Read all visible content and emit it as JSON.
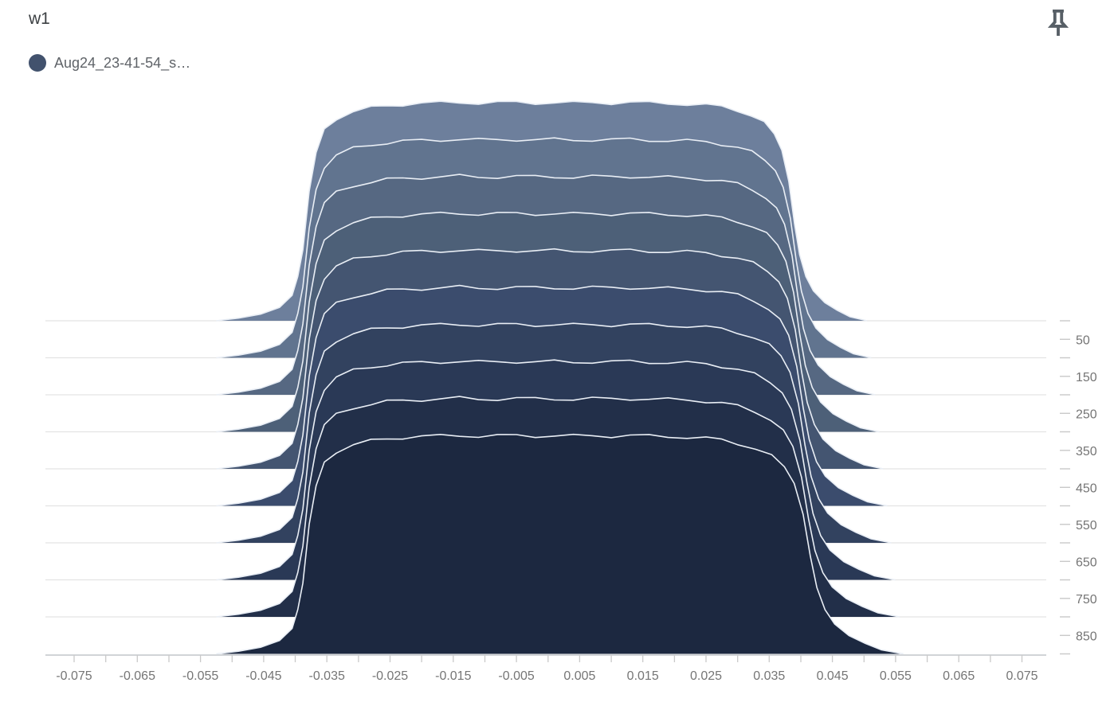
{
  "header": {
    "title": "w1",
    "pin_icon": "push-pin-icon"
  },
  "legend": {
    "items": [
      {
        "label": "Aug24_23-41-54_s…",
        "color": "#42526d"
      }
    ]
  },
  "chart_data": {
    "type": "ridgeline_histogram",
    "title": "w1",
    "run": "Aug24_23-41-54_s…",
    "legend_position": "top-left",
    "grid": true,
    "x_axis": {
      "range": [
        -0.08,
        0.08
      ],
      "minor_tick_step": 0.005,
      "tick_values": [
        -0.075,
        -0.065,
        -0.055,
        -0.045,
        -0.035,
        -0.025,
        -0.015,
        -0.005,
        0.005,
        0.015,
        0.025,
        0.035,
        0.045,
        0.055,
        0.065,
        0.075
      ],
      "tick_labels": [
        "-0.075",
        "-0.065",
        "-0.055",
        "-0.045",
        "-0.035",
        "-0.025",
        "-0.015",
        "-0.005",
        "0.005",
        "0.015",
        "0.025",
        "0.035",
        "0.045",
        "0.055",
        "0.065",
        "0.075"
      ]
    },
    "step_axis": {
      "range": [
        0,
        900
      ],
      "tick_values": [
        50,
        150,
        250,
        350,
        450,
        550,
        650,
        750,
        850
      ],
      "tick_labels": [
        "50",
        "150",
        "250",
        "350",
        "450",
        "550",
        "650",
        "750",
        "850"
      ],
      "minor_tick_step": 50
    },
    "steps": [
      0,
      100,
      200,
      300,
      400,
      500,
      600,
      700,
      800,
      900
    ],
    "profile": [
      [
        -0.0525,
        0
      ],
      [
        -0.049,
        0.012
      ],
      [
        -0.0455,
        0.03
      ],
      [
        -0.0425,
        0.06
      ],
      [
        -0.0405,
        0.115
      ],
      [
        -0.0396,
        0.2
      ],
      [
        -0.0388,
        0.32
      ],
      [
        -0.0378,
        0.585
      ],
      [
        -0.0367,
        0.76
      ],
      [
        -0.0354,
        0.864
      ],
      [
        -0.0335,
        0.915
      ],
      [
        -0.0308,
        0.946
      ],
      [
        -0.028,
        0.962
      ],
      [
        -0.0255,
        0.972
      ],
      [
        -0.023,
        0.978
      ],
      [
        -0.02,
        0.982
      ],
      [
        -0.017,
        0.985
      ],
      [
        -0.014,
        0.988
      ],
      [
        -0.011,
        0.984
      ],
      [
        -0.008,
        0.985
      ],
      [
        -0.005,
        0.987
      ],
      [
        -0.002,
        0.985
      ],
      [
        0.001,
        0.986
      ],
      [
        0.004,
        0.984
      ],
      [
        0.007,
        0.986
      ],
      [
        0.01,
        0.985
      ],
      [
        0.013,
        0.987
      ],
      [
        0.016,
        0.984
      ],
      [
        0.019,
        0.982
      ],
      [
        0.022,
        0.98
      ],
      [
        0.025,
        0.975
      ],
      [
        0.0275,
        0.966
      ],
      [
        0.03,
        0.952
      ],
      [
        0.0322,
        0.928
      ],
      [
        0.0342,
        0.893
      ],
      [
        0.0358,
        0.845
      ],
      [
        0.037,
        0.77
      ],
      [
        0.0381,
        0.63
      ],
      [
        0.039,
        0.44
      ],
      [
        0.0398,
        0.3
      ],
      [
        0.0408,
        0.2
      ],
      [
        0.042,
        0.135
      ],
      [
        0.0438,
        0.082
      ],
      [
        0.0458,
        0.047
      ],
      [
        0.0478,
        0.018
      ],
      [
        0.0505,
        0
      ]
    ],
    "palette": [
      "#6d7f9c",
      "#61748f",
      "#566882",
      "#4d6078",
      "#445571",
      "#3b4c6d",
      "#32425f",
      "#2a3956",
      "#222f49",
      "#1c2840"
    ],
    "outline_color": "#e9eef5",
    "grid_color": "#e3e3e3",
    "axis_line_color": "#c2c6ca",
    "tick_color": "#c9c9c9",
    "label_color": "#757575",
    "legend_dot_color": "#42526d",
    "title_color": "#3c4043",
    "pin_color": "#575f66"
  }
}
